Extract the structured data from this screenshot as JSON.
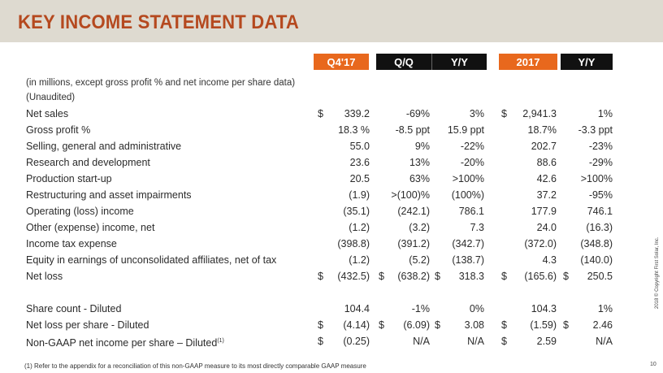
{
  "title": "KEY INCOME STATEMENT DATA",
  "headers": [
    "Q4'17",
    "Q/Q",
    "Y/Y",
    "2017",
    "Y/Y"
  ],
  "notes": [
    "(in millions, except gross profit % and net income per share data)",
    "(Unaudited)"
  ],
  "rows": [
    {
      "label": "Net sales",
      "sup": "",
      "d": [
        "$",
        "",
        "",
        "$",
        ""
      ],
      "v": [
        "339.2",
        "-69%",
        "3%",
        "2,941.3",
        "1%"
      ]
    },
    {
      "label": "Gross profit %",
      "sup": "",
      "d": [
        "",
        "",
        "",
        "",
        ""
      ],
      "v": [
        "18.3 %",
        "-8.5 ppt",
        "15.9 ppt",
        "18.7%",
        "-3.3 ppt"
      ]
    },
    {
      "label": "Selling, general and administrative",
      "sup": "",
      "d": [
        "",
        "",
        "",
        "",
        ""
      ],
      "v": [
        "55.0",
        "9%",
        "-22%",
        "202.7",
        "-23%"
      ]
    },
    {
      "label": "Research and development",
      "sup": "",
      "d": [
        "",
        "",
        "",
        "",
        ""
      ],
      "v": [
        "23.6",
        "13%",
        "-20%",
        "88.6",
        "-29%"
      ]
    },
    {
      "label": "Production start-up",
      "sup": "",
      "d": [
        "",
        "",
        "",
        "",
        ""
      ],
      "v": [
        "20.5",
        "63%",
        ">100%",
        "42.6",
        ">100%"
      ]
    },
    {
      "label": "Restructuring and asset impairments",
      "sup": "",
      "d": [
        "",
        "",
        "",
        "",
        ""
      ],
      "v": [
        "(1.9)",
        ">(100)%",
        "(100%)",
        "37.2",
        "-95%"
      ]
    },
    {
      "label": "Operating (loss) income",
      "sup": "",
      "d": [
        "",
        "",
        "",
        "",
        ""
      ],
      "v": [
        "(35.1)",
        "(242.1)",
        "786.1",
        "177.9",
        "746.1"
      ]
    },
    {
      "label": "Other (expense) income, net",
      "sup": "",
      "d": [
        "",
        "",
        "",
        "",
        ""
      ],
      "v": [
        "(1.2)",
        "(3.2)",
        "7.3",
        "24.0",
        "(16.3)"
      ]
    },
    {
      "label": "Income tax expense",
      "sup": "",
      "d": [
        "",
        "",
        "",
        "",
        ""
      ],
      "v": [
        "(398.8)",
        "(391.2)",
        "(342.7)",
        "(372.0)",
        "(348.8)"
      ]
    },
    {
      "label": "Equity in earnings of unconsolidated affiliates, net of tax",
      "sup": "",
      "d": [
        "",
        "",
        "",
        "",
        ""
      ],
      "v": [
        "(1.2)",
        "(5.2)",
        "(138.7)",
        "4.3",
        "(140.0)"
      ]
    },
    {
      "label": "Net loss",
      "sup": "",
      "d": [
        "$",
        "$",
        "$",
        "$",
        "$"
      ],
      "v": [
        "(432.5)",
        "(638.2)",
        "318.3",
        "(165.6)",
        "250.5"
      ]
    },
    {
      "label": "Share count - Diluted",
      "sup": "",
      "d": [
        "",
        "",
        "",
        "",
        ""
      ],
      "v": [
        "104.4",
        "-1%",
        "0%",
        "104.3",
        "1%"
      ]
    },
    {
      "label": "Net loss per share - Diluted",
      "sup": "",
      "d": [
        "$",
        "$",
        "$",
        "$",
        "$"
      ],
      "v": [
        "(4.14)",
        "(6.09)",
        "3.08",
        "(1.59)",
        "2.46"
      ]
    },
    {
      "label": "Non-GAAP net income per share – Diluted",
      "sup": "(1)",
      "d": [
        "$",
        "",
        "",
        "$",
        ""
      ],
      "v": [
        "(0.25)",
        "N/A",
        "N/A",
        "2.59",
        "N/A"
      ]
    }
  ],
  "footnote": "(1)    Refer to the appendix for a reconciliation of this non-GAAP measure to its most directly comparable GAAP measure",
  "copyright": "2018 © Copyright First Solar, Inc.",
  "page_number": "10"
}
